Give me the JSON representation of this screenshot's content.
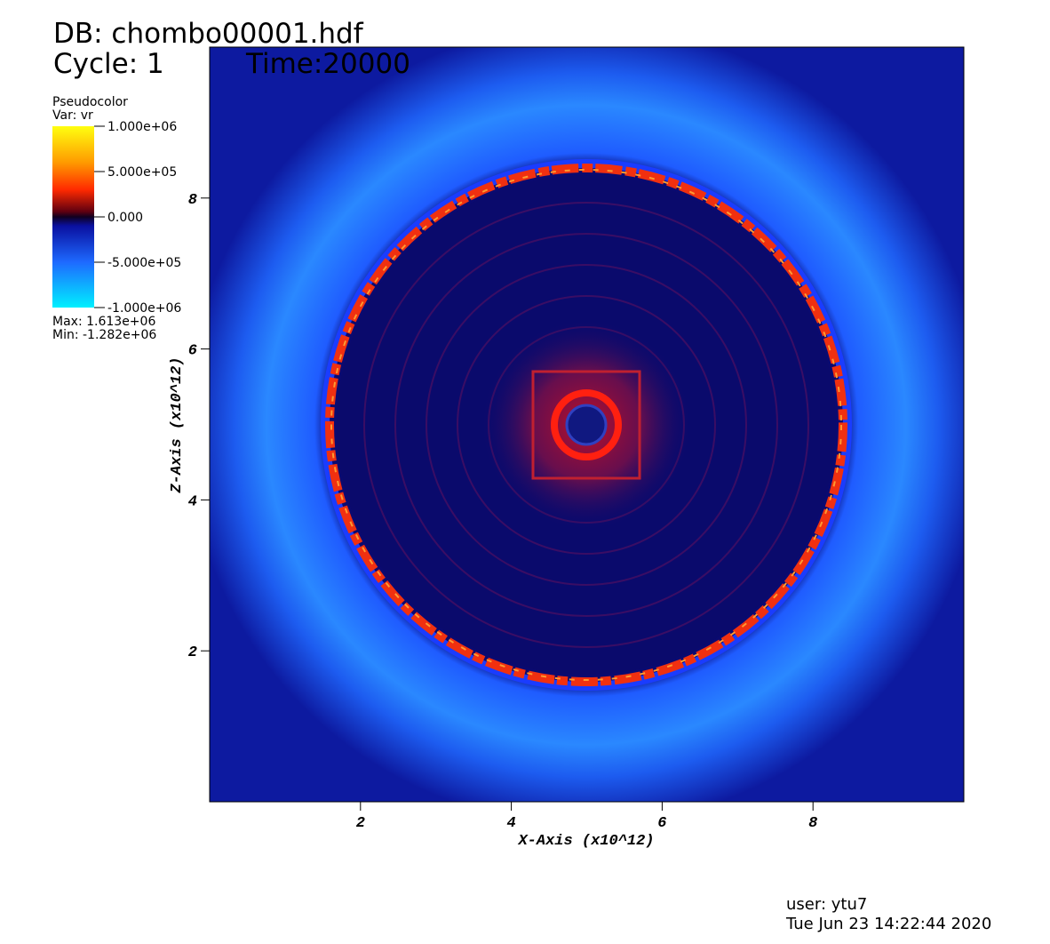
{
  "header": {
    "db": "DB: chombo00001.hdf",
    "cycle": "Cycle: 1",
    "time": "Time:20000"
  },
  "chart_data": {
    "type": "pseudocolor",
    "legend": {
      "title": "Pseudocolor",
      "var": "Var: vr",
      "clim": [
        -1000000,
        1000000
      ],
      "ticks": [
        {
          "value": 1000000,
          "label": "1.000e+06"
        },
        {
          "value": 500000,
          "label": "5.000e+05"
        },
        {
          "value": 0,
          "label": "0.000"
        },
        {
          "value": -500000,
          "label": "-5.000e+05"
        },
        {
          "value": -1000000,
          "label": "-1.000e+06"
        }
      ],
      "max": "Max:  1.613e+06",
      "min": "Min: -1.282e+06"
    },
    "xlabel": "X-Axis (x10^12)",
    "ylabel": "Z-Axis (x10^12)",
    "xlim": [
      0,
      10
    ],
    "ylim": [
      0,
      10
    ],
    "xticks": [
      2,
      4,
      6,
      8
    ],
    "yticks": [
      2,
      4,
      6,
      8
    ]
  },
  "footer": {
    "user": "user: ytu7",
    "date": "Tue Jun 23 14:22:44 2020"
  }
}
